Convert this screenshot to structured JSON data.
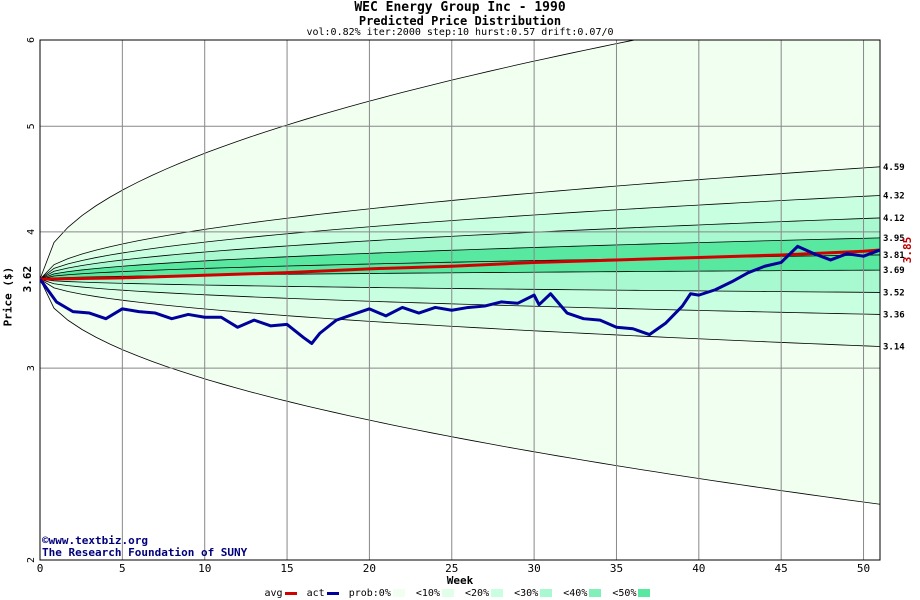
{
  "header": {
    "title": "WEC Energy Group Inc - 1990",
    "subtitle": "Predicted Price Distribution",
    "params": "vol:0.82% iter:2000 step:10 hurst:0.57 drift:0.07/0"
  },
  "credits": {
    "line1": "©www.textbiz.org",
    "line2": "The Research Foundation of SUNY"
  },
  "colors": {
    "plot_bg": "#ffffff",
    "band_0": "#f0fff0",
    "band_10": "#e0ffe8",
    "band_20": "#c8ffe0",
    "band_30": "#a8f8d0",
    "band_40": "#80f0b8",
    "band_50": "#58e8a0",
    "avg_line": "#d00000",
    "act_line": "#00009a",
    "grid": "#888888",
    "right_label_red": "#c00000"
  },
  "chart_data": {
    "type": "area",
    "title": "Predicted Price Distribution",
    "xlabel": "Week",
    "ylabel": "Price ($)",
    "xlim": [
      0,
      51
    ],
    "ylim": [
      2,
      6
    ],
    "log_scale_y": true,
    "x_ticks": [
      0,
      5,
      10,
      15,
      20,
      25,
      30,
      35,
      40,
      45,
      50
    ],
    "y_ticks": [
      2,
      3,
      4,
      5,
      6
    ],
    "grid": true,
    "start_price": 3.62,
    "start_price_label": "3.62",
    "end_actual_label": "3.85",
    "percentile_curves": [
      {
        "name": "outer_high",
        "end": 6.6
      },
      {
        "name": "p_hi_4",
        "end": 4.59
      },
      {
        "name": "p_hi_3",
        "end": 4.32
      },
      {
        "name": "p_hi_2",
        "end": 4.12
      },
      {
        "name": "p_hi_1",
        "end": 3.95
      },
      {
        "name": "median",
        "end": 3.81
      },
      {
        "name": "p_lo_1",
        "end": 3.69
      },
      {
        "name": "p_lo_2",
        "end": 3.52
      },
      {
        "name": "p_lo_3",
        "end": 3.36
      },
      {
        "name": "p_lo_4",
        "end": 3.14
      },
      {
        "name": "outer_low",
        "end": 2.25
      }
    ],
    "right_labels": [
      "4.59",
      "4.32",
      "4.12",
      "3.95",
      "3.81",
      "3.69",
      "3.52",
      "3.36",
      "3.14"
    ],
    "series": [
      {
        "name": "avg",
        "x": [
          0,
          5,
          10,
          15,
          20,
          25,
          30,
          35,
          40,
          45,
          50,
          51
        ],
        "values": [
          3.62,
          3.63,
          3.65,
          3.67,
          3.7,
          3.72,
          3.75,
          3.77,
          3.79,
          3.81,
          3.84,
          3.85
        ]
      },
      {
        "name": "act",
        "x": [
          0,
          1,
          2,
          3,
          4,
          5,
          6,
          7,
          8,
          9,
          10,
          11,
          12,
          13,
          14,
          15,
          16,
          16.5,
          17,
          18,
          19,
          20,
          21,
          22,
          23,
          24,
          25,
          26,
          27,
          28,
          29,
          30,
          30.3,
          31,
          32,
          33,
          34,
          35,
          36,
          37,
          38,
          39,
          39.5,
          40,
          41,
          42,
          43,
          44,
          45,
          46,
          47,
          48,
          49,
          50,
          51
        ],
        "values": [
          3.62,
          3.45,
          3.38,
          3.37,
          3.33,
          3.4,
          3.38,
          3.37,
          3.33,
          3.36,
          3.34,
          3.34,
          3.27,
          3.32,
          3.28,
          3.29,
          3.2,
          3.16,
          3.23,
          3.32,
          3.36,
          3.4,
          3.35,
          3.41,
          3.37,
          3.41,
          3.39,
          3.41,
          3.42,
          3.45,
          3.44,
          3.5,
          3.43,
          3.51,
          3.37,
          3.33,
          3.32,
          3.27,
          3.26,
          3.22,
          3.3,
          3.42,
          3.51,
          3.5,
          3.54,
          3.6,
          3.67,
          3.72,
          3.75,
          3.88,
          3.82,
          3.77,
          3.82,
          3.8,
          3.85
        ]
      }
    ]
  },
  "legend": {
    "avg": "avg",
    "act": "act",
    "prob": "prob:0%",
    "b10": "<10%",
    "b20": "<20%",
    "b30": "<30%",
    "b40": "<40%",
    "b50": "<50%"
  }
}
